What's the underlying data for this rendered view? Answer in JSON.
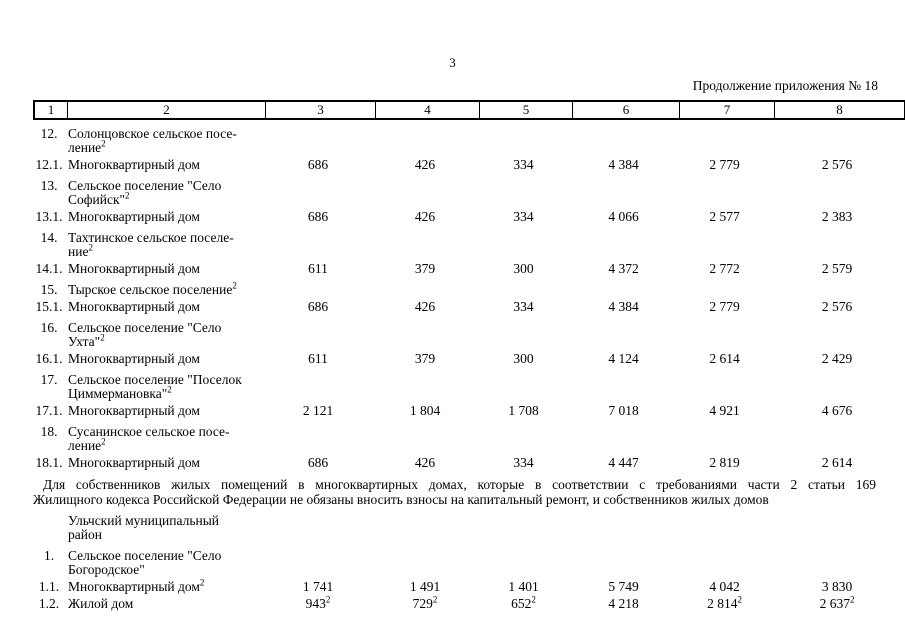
{
  "page": {
    "number": "3",
    "continuation": "Продолжение приложения № 18"
  },
  "table": {
    "column_headers": [
      "1",
      "2",
      "3",
      "4",
      "5",
      "6",
      "7",
      "8"
    ],
    "rows_before_note": [
      {
        "type": "section",
        "num": "12.",
        "label": "Солонцовское сельское посе-\nление",
        "sup": "2",
        "values": []
      },
      {
        "type": "data",
        "num": "12.1.",
        "label": "Многоквартирный дом",
        "sup": "",
        "values": [
          {
            "v": "686",
            "s": ""
          },
          {
            "v": "426",
            "s": ""
          },
          {
            "v": "334",
            "s": ""
          },
          {
            "v": "4 384",
            "s": ""
          },
          {
            "v": "2 779",
            "s": ""
          },
          {
            "v": "2 576",
            "s": ""
          }
        ]
      },
      {
        "type": "section",
        "num": "13.",
        "label": "Сельское поселение \"Село\nСофийск\"",
        "sup": "2",
        "values": []
      },
      {
        "type": "data",
        "num": "13.1.",
        "label": "Многоквартирный дом",
        "sup": "",
        "values": [
          {
            "v": "686",
            "s": ""
          },
          {
            "v": "426",
            "s": ""
          },
          {
            "v": "334",
            "s": ""
          },
          {
            "v": "4 066",
            "s": ""
          },
          {
            "v": "2 577",
            "s": ""
          },
          {
            "v": "2 383",
            "s": ""
          }
        ]
      },
      {
        "type": "section",
        "num": "14.",
        "label": "Тахтинское сельское поселе-\nние",
        "sup": "2",
        "values": []
      },
      {
        "type": "data",
        "num": "14.1.",
        "label": "Многоквартирный дом",
        "sup": "",
        "values": [
          {
            "v": "611",
            "s": ""
          },
          {
            "v": "379",
            "s": ""
          },
          {
            "v": "300",
            "s": ""
          },
          {
            "v": "4 372",
            "s": ""
          },
          {
            "v": "2 772",
            "s": ""
          },
          {
            "v": "2 579",
            "s": ""
          }
        ]
      },
      {
        "type": "section",
        "num": "15.",
        "label": "Тырское сельское поселение",
        "sup": "2",
        "values": []
      },
      {
        "type": "data",
        "num": "15.1.",
        "label": "Многоквартирный дом",
        "sup": "",
        "values": [
          {
            "v": "686",
            "s": ""
          },
          {
            "v": "426",
            "s": ""
          },
          {
            "v": "334",
            "s": ""
          },
          {
            "v": "4 384",
            "s": ""
          },
          {
            "v": "2 779",
            "s": ""
          },
          {
            "v": "2 576",
            "s": ""
          }
        ]
      },
      {
        "type": "section",
        "num": "16.",
        "label": "Сельское поселение \"Село\nУхта\"",
        "sup": "2",
        "values": []
      },
      {
        "type": "data",
        "num": "16.1.",
        "label": "Многоквартирный дом",
        "sup": "",
        "values": [
          {
            "v": "611",
            "s": ""
          },
          {
            "v": "379",
            "s": ""
          },
          {
            "v": "300",
            "s": ""
          },
          {
            "v": "4 124",
            "s": ""
          },
          {
            "v": "2 614",
            "s": ""
          },
          {
            "v": "2 429",
            "s": ""
          }
        ]
      },
      {
        "type": "section",
        "num": "17.",
        "label": "Сельское поселение \"Поселок\nЦиммермановка\"",
        "sup": "2",
        "values": []
      },
      {
        "type": "data",
        "num": "17.1.",
        "label": "Многоквартирный дом",
        "sup": "",
        "values": [
          {
            "v": "2 121",
            "s": ""
          },
          {
            "v": "1 804",
            "s": ""
          },
          {
            "v": "1 708",
            "s": ""
          },
          {
            "v": "7 018",
            "s": ""
          },
          {
            "v": "4 921",
            "s": ""
          },
          {
            "v": "4 676",
            "s": ""
          }
        ]
      },
      {
        "type": "section",
        "num": "18.",
        "label": "Сусанинское сельское посе-\nление",
        "sup": "2",
        "values": []
      },
      {
        "type": "data",
        "num": "18.1.",
        "label": "Многоквартирный дом",
        "sup": "",
        "values": [
          {
            "v": "686",
            "s": ""
          },
          {
            "v": "426",
            "s": ""
          },
          {
            "v": "334",
            "s": ""
          },
          {
            "v": "4 447",
            "s": ""
          },
          {
            "v": "2 819",
            "s": ""
          },
          {
            "v": "2 614",
            "s": ""
          }
        ]
      }
    ],
    "rows_after_note": [
      {
        "type": "section",
        "num": "",
        "label": "Ульчский муниципальный\nрайон",
        "sup": "",
        "values": []
      },
      {
        "type": "section",
        "num": "1.",
        "label": "Сельское поселение \"Село\nБогородское\"",
        "sup": "",
        "values": []
      },
      {
        "type": "data",
        "num": "1.1.",
        "label": "Многоквартирный дом",
        "sup": "2",
        "values": [
          {
            "v": "1 741",
            "s": ""
          },
          {
            "v": "1 491",
            "s": ""
          },
          {
            "v": "1 401",
            "s": ""
          },
          {
            "v": "5 749",
            "s": ""
          },
          {
            "v": "4 042",
            "s": ""
          },
          {
            "v": "3 830",
            "s": ""
          }
        ]
      },
      {
        "type": "data",
        "num": "1.2.",
        "label": "Жилой дом",
        "sup": "",
        "values": [
          {
            "v": "943",
            "s": "2"
          },
          {
            "v": "729",
            "s": "2"
          },
          {
            "v": "652",
            "s": "2"
          },
          {
            "v": "4 218",
            "s": ""
          },
          {
            "v": "2 814",
            "s": "2"
          },
          {
            "v": "2 637",
            "s": "2"
          }
        ]
      }
    ]
  },
  "note": {
    "line1": "Для собственников жилых помещений в многоквартирных домах, которые в соответствии с требованиями части 2 статьи 169",
    "line2": "Жилищного кодекса Российской Федерации не обязаны вносить взносы на капитальный ремонт, и собственников жилых домов"
  }
}
